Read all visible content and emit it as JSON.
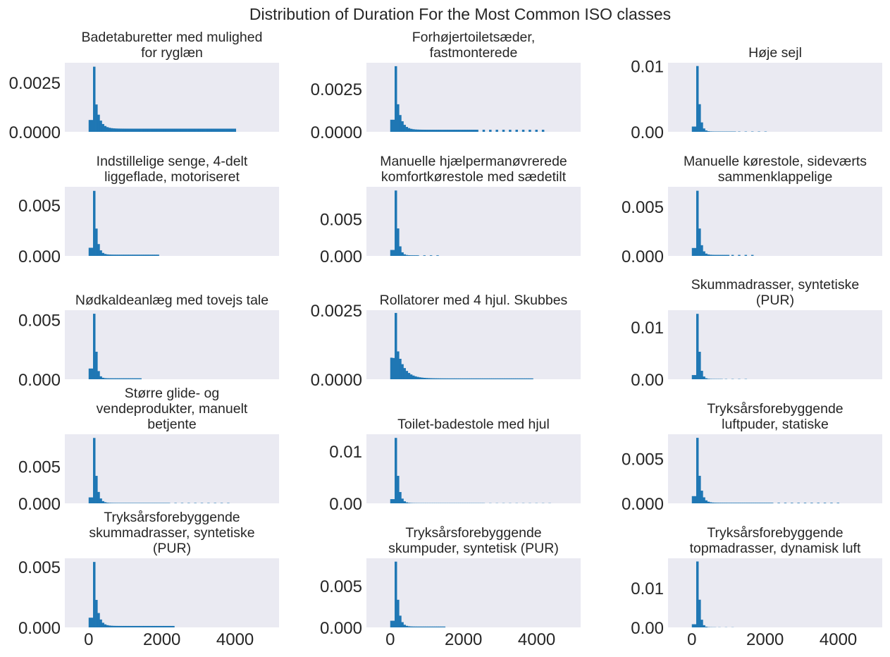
{
  "chart_data": {
    "type": "bar",
    "title": "Distribution of Duration For the Most Common ISO classes",
    "xlim": [
      -650,
      5200
    ],
    "x_ticks": [
      "0",
      "2000",
      "4000"
    ],
    "bar_color": "#1f77b4",
    "plot_bg": "#eaeaf2",
    "bin_width": 60,
    "subplots": [
      {
        "title": "Badetaburetter med mulighed\nfor ryglæn",
        "ylim": [
          0,
          0.0035
        ],
        "y_ticks": [
          {
            "value": 0,
            "label": "0.0000"
          },
          {
            "value": 0.0025,
            "label": "0.0025"
          }
        ],
        "peak": 0.0033,
        "hump": [
          0.0006,
          0.0006
        ],
        "tail": 0.00016,
        "tailk": 0.55,
        "xmax": 4000,
        "sparse": 0
      },
      {
        "title": "Forhøjertoiletsæder,\nfastmonterede",
        "ylim": [
          0,
          0.004
        ],
        "y_ticks": [
          {
            "value": 0,
            "label": "0.0000"
          },
          {
            "value": 0.0025,
            "label": "0.0025"
          }
        ],
        "peak": 0.0038,
        "hump": [
          0.0007,
          0.0007
        ],
        "tail": 0.00012,
        "tailk": 0.55,
        "xmax": 4200,
        "sparse": 1
      },
      {
        "title": "Høje sejl",
        "ylim": [
          0,
          0.0105
        ],
        "y_ticks": [
          {
            "value": 0,
            "label": "0.00"
          },
          {
            "value": 0.01,
            "label": "0.01"
          }
        ],
        "peak": 0.01,
        "hump": [
          0.0008,
          0.0008
        ],
        "tail": 5e-05,
        "tailk": 1.1,
        "xmax": 2100,
        "sparse": 1
      },
      {
        "title": "Indstillelige senge, 4-delt\nliggeflade, motoriseret",
        "ylim": [
          0,
          0.0068
        ],
        "y_ticks": [
          {
            "value": 0,
            "label": "0.000"
          },
          {
            "value": 0.005,
            "label": "0.005"
          }
        ],
        "peak": 0.0064,
        "hump": [
          0.0008,
          0.0008
        ],
        "tail": 0.00012,
        "tailk": 0.9,
        "xmax": 1900,
        "sparse": 0
      },
      {
        "title": "Manuelle hjælpermanøvrerede\nkomfortkørestole med sædetilt",
        "ylim": [
          0,
          0.0093
        ],
        "y_ticks": [
          {
            "value": 0,
            "label": "0.000"
          },
          {
            "value": 0.005,
            "label": "0.005"
          }
        ],
        "peak": 0.0088,
        "hump": [
          0.0008,
          0.0008
        ],
        "tail": 8e-05,
        "tailk": 1.1,
        "xmax": 1400,
        "sparse": 1
      },
      {
        "title": "Manuelle kørestole, sideværts\nsammenklappelige",
        "ylim": [
          0,
          0.007
        ],
        "y_ticks": [
          {
            "value": 0,
            "label": "0.000"
          },
          {
            "value": 0.005,
            "label": "0.005"
          }
        ],
        "peak": 0.0066,
        "hump": [
          0.0008,
          0.0008
        ],
        "tail": 0.0001,
        "tailk": 1.0,
        "xmax": 1750,
        "sparse": 1
      },
      {
        "title": "Nødkaldeanlæg med tovejs tale",
        "ylim": [
          0,
          0.0058
        ],
        "y_ticks": [
          {
            "value": 0,
            "label": "0.000"
          },
          {
            "value": 0.005,
            "label": "0.005"
          }
        ],
        "peak": 0.0055,
        "hump": [
          0.0009,
          0.0009
        ],
        "tail": 8e-05,
        "tailk": 1.3,
        "xmax": 1400,
        "sparse": 0
      },
      {
        "title": "Rollatorer med 4 hjul. Skubbes",
        "ylim": [
          0,
          0.0025
        ],
        "y_ticks": [
          {
            "value": 0,
            "label": "0.0000"
          },
          {
            "value": 0.0025,
            "label": "0.0025"
          }
        ],
        "peak": 0.0024,
        "hump": [
          0.00078,
          0.00077
        ],
        "tail": 3e-05,
        "tailk": 0.32,
        "xmax": 3900,
        "sparse": 0
      },
      {
        "title": "Skummadrasser, syntetiske\n(PUR)",
        "ylim": [
          0,
          0.0132
        ],
        "y_ticks": [
          {
            "value": 0,
            "label": "0.00"
          },
          {
            "value": 0.01,
            "label": "0.01"
          }
        ],
        "peak": 0.0125,
        "hump": [
          0.0008,
          0.0008
        ],
        "tail": 5e-05,
        "tailk": 1.2,
        "xmax": 1500,
        "sparse": 1
      },
      {
        "title": "Større glide- og\nvendeprodukter, manuelt\nbetjente",
        "ylim": [
          0,
          0.0093
        ],
        "y_ticks": [
          {
            "value": 0,
            "label": "0.000"
          },
          {
            "value": 0.005,
            "label": "0.005"
          }
        ],
        "peak": 0.0088,
        "hump": [
          0.0008,
          0.0008
        ],
        "tail": 5e-05,
        "tailk": 0.9,
        "xmax": 3900,
        "sparse": 1
      },
      {
        "title": "Toilet-badestole med hjul",
        "ylim": [
          0,
          0.0132
        ],
        "y_ticks": [
          {
            "value": 0,
            "label": "0.00"
          },
          {
            "value": 0.01,
            "label": "0.01"
          }
        ],
        "peak": 0.0125,
        "hump": [
          0.0008,
          0.0008
        ],
        "tail": 4e-05,
        "tailk": 0.9,
        "xmax": 4500,
        "sparse": 1
      },
      {
        "title": "Tryksårsforebyggende\nluftpuder, statiske",
        "ylim": [
          0,
          0.0077
        ],
        "y_ticks": [
          {
            "value": 0,
            "label": "0.000"
          },
          {
            "value": 0.005,
            "label": "0.005"
          }
        ],
        "peak": 0.0073,
        "hump": [
          0.0008,
          0.0008
        ],
        "tail": 6e-05,
        "tailk": 0.8,
        "xmax": 4000,
        "sparse": 1
      },
      {
        "title": "Tryksårsforebyggende\nskummadrasser, syntetiske\n(PUR)",
        "ylim": [
          0,
          0.0057
        ],
        "y_ticks": [
          {
            "value": 0,
            "label": "0.000"
          },
          {
            "value": 0.005,
            "label": "0.005"
          }
        ],
        "peak": 0.0054,
        "hump": [
          0.0008,
          0.0008
        ],
        "tail": 0.00012,
        "tailk": 0.7,
        "xmax": 2300,
        "sparse": 0
      },
      {
        "title": "Tryksårsforebyggende\nskumpuder, syntetisk (PUR)",
        "ylim": [
          0,
          0.0083
        ],
        "y_ticks": [
          {
            "value": 0,
            "label": "0.000"
          },
          {
            "value": 0.005,
            "label": "0.005"
          }
        ],
        "peak": 0.0079,
        "hump": [
          0.0008,
          0.0008
        ],
        "tail": 0.0001,
        "tailk": 0.9,
        "xmax": 1450,
        "sparse": 0
      },
      {
        "title": "Tryksårsforebyggende\ntopmadrasser, dynamisk luft",
        "ylim": [
          0,
          0.0175
        ],
        "y_ticks": [
          {
            "value": 0,
            "label": "0.00"
          },
          {
            "value": 0.01,
            "label": "0.01"
          }
        ],
        "peak": 0.0167,
        "hump": [
          0.0008,
          0.0008
        ],
        "tail": 4e-05,
        "tailk": 1.3,
        "xmax": 1100,
        "sparse": 1
      }
    ]
  }
}
